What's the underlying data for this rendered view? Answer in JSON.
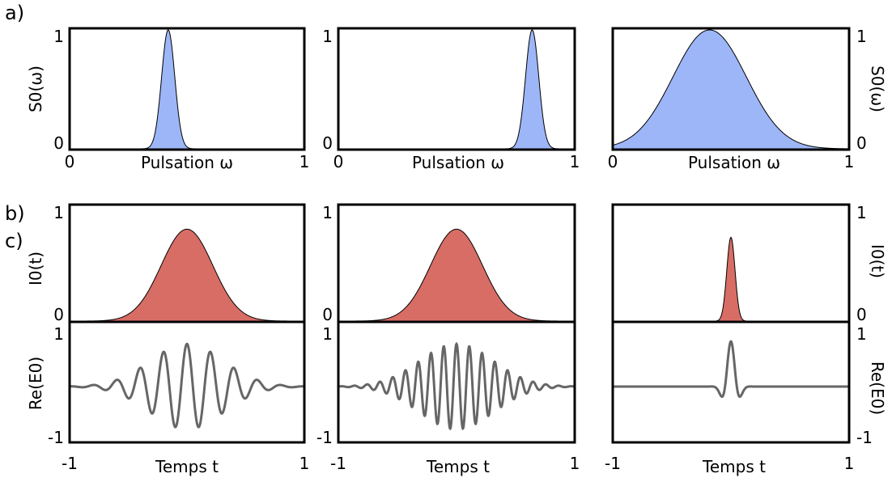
{
  "rows": {
    "a": {
      "label": "a)",
      "ylabel": "S0(ω)",
      "xlabel": "Pulsation ω",
      "xticks": [
        "0",
        "1"
      ],
      "yticks": [
        "1",
        "0"
      ],
      "fill_color": "#9DB6F8",
      "panels": [
        {
          "center": 0.42,
          "sigma": 0.028
        },
        {
          "center": 0.82,
          "sigma": 0.028
        },
        {
          "center": 0.41,
          "sigma": 0.155
        }
      ]
    },
    "b": {
      "label": "b)",
      "ylabel": "I0(t)",
      "yticks": [
        "1",
        "0"
      ],
      "fill_color": "#D86D66",
      "panels": [
        {
          "center": 0.0,
          "sigma": 0.22,
          "peak": 0.8
        },
        {
          "center": 0.0,
          "sigma": 0.22,
          "peak": 0.8
        },
        {
          "center": 0.0,
          "sigma": 0.035,
          "peak": 0.73
        }
      ]
    },
    "c": {
      "label": "c)",
      "ylabel": "Re(E0)",
      "xlabel": "Temps t",
      "xticks": [
        "-1",
        "1"
      ],
      "yticks": [
        "1",
        "-1"
      ],
      "line_color": "#666666",
      "panels": [
        {
          "sigma": 0.22,
          "cycles": 10.0,
          "amplitude": 0.85
        },
        {
          "sigma": 0.22,
          "cycles": 18.5,
          "amplitude": 0.85
        },
        {
          "sigma": 0.035,
          "cycles": 10.0,
          "amplitude": 0.9
        }
      ]
    }
  }
}
